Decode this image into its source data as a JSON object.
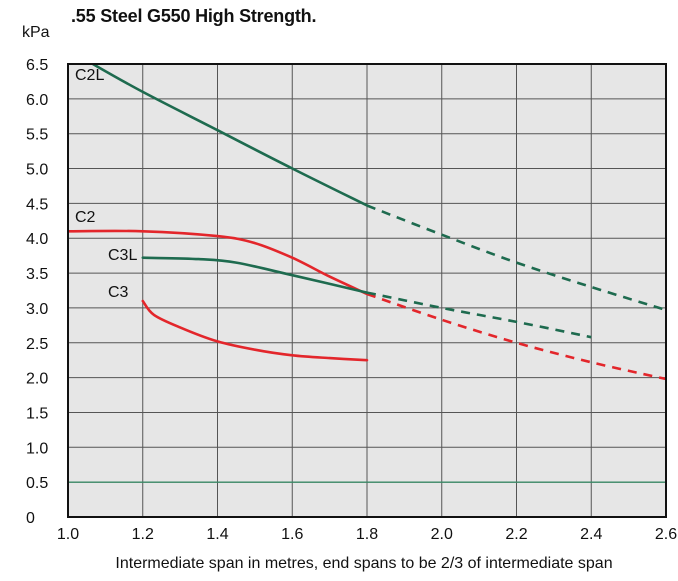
{
  "colors": {
    "plot_background": "#e6e6e6",
    "grid": "#555555",
    "green": "#1e6b4f",
    "red": "#e3262b",
    "reference_line": "#3b8a67"
  },
  "chart_data": {
    "type": "line",
    "title": ".55 Steel G550 High Strength.",
    "ylabel": "kPa",
    "xlabel": "Intermediate span in metres, end spans to be 2/3 of intermediate span",
    "xlim": [
      1.0,
      2.6
    ],
    "ylim": [
      0,
      6.5
    ],
    "x_ticks": [
      "1.0",
      "1.2",
      "1.4",
      "1.6",
      "1.8",
      "2.0",
      "2.2",
      "2.4",
      "2.6"
    ],
    "y_ticks": [
      "0",
      "0.5",
      "1.0",
      "1.5",
      "2.0",
      "2.5",
      "3.0",
      "3.5",
      "4.0",
      "4.5",
      "5.0",
      "5.5",
      "6.0",
      "6.5"
    ],
    "grid": true,
    "reference_line": {
      "y": 0.5
    },
    "series": [
      {
        "name": "C2L",
        "color": "green",
        "solid": [
          [
            1.05,
            6.55
          ],
          [
            1.2,
            6.1
          ],
          [
            1.4,
            5.55
          ],
          [
            1.6,
            5.0
          ],
          [
            1.8,
            4.47
          ]
        ],
        "dashed": [
          [
            1.8,
            4.47
          ],
          [
            2.0,
            4.05
          ],
          [
            2.2,
            3.65
          ],
          [
            2.4,
            3.3
          ],
          [
            2.6,
            2.97
          ]
        ]
      },
      {
        "name": "C2",
        "color": "red",
        "solid": [
          [
            1.0,
            4.1
          ],
          [
            1.2,
            4.1
          ],
          [
            1.4,
            4.03
          ],
          [
            1.5,
            3.93
          ],
          [
            1.6,
            3.72
          ],
          [
            1.7,
            3.45
          ],
          [
            1.8,
            3.2
          ]
        ],
        "dashed": [
          [
            1.8,
            3.2
          ],
          [
            2.0,
            2.83
          ],
          [
            2.2,
            2.5
          ],
          [
            2.4,
            2.22
          ],
          [
            2.6,
            1.98
          ]
        ]
      },
      {
        "name": "C3L",
        "color": "green",
        "solid": [
          [
            1.2,
            3.72
          ],
          [
            1.35,
            3.7
          ],
          [
            1.45,
            3.65
          ],
          [
            1.6,
            3.47
          ],
          [
            1.8,
            3.22
          ]
        ],
        "dashed": [
          [
            1.8,
            3.22
          ],
          [
            2.0,
            3.0
          ],
          [
            2.2,
            2.8
          ],
          [
            2.4,
            2.58
          ]
        ]
      },
      {
        "name": "C3",
        "color": "red",
        "solid": [
          [
            1.2,
            3.1
          ],
          [
            1.23,
            2.9
          ],
          [
            1.3,
            2.72
          ],
          [
            1.4,
            2.52
          ],
          [
            1.5,
            2.4
          ],
          [
            1.6,
            2.32
          ],
          [
            1.7,
            2.28
          ],
          [
            1.8,
            2.25
          ]
        ],
        "dashed": []
      }
    ]
  }
}
